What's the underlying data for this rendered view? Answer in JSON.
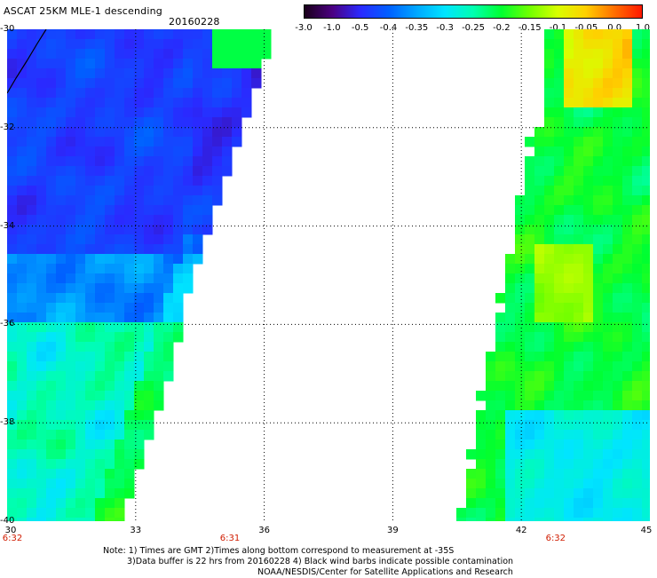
{
  "title": "ASCAT 25KM MLE-1 descending",
  "date": "20160228",
  "colorbar": {
    "labels": [
      "-3.0",
      "-1.0",
      "-0.5",
      "-0.4",
      "-0.35",
      "-0.3",
      "-0.25",
      "-0.2",
      "-0.15",
      "-0.1",
      "-0.05",
      "0.0",
      "1.0"
    ],
    "colors": [
      "#1a001a",
      "#4b0082",
      "#2a2aff",
      "#0060ff",
      "#00a8ff",
      "#00e5ff",
      "#00ffb0",
      "#00ff30",
      "#70ff00",
      "#d8ff00",
      "#ffd000",
      "#ff7000",
      "#ff1800"
    ]
  },
  "y_axis": {
    "labels": [
      "-30",
      "-32",
      "-34",
      "-36",
      "-38",
      "-40"
    ],
    "range": [
      -30,
      -40
    ]
  },
  "x_axis": {
    "labels": [
      "30",
      "33",
      "36",
      "39",
      "42",
      "45"
    ],
    "range": [
      30,
      45
    ]
  },
  "time_labels": [
    {
      "text": "6:32",
      "lon": 30
    },
    {
      "text": "6:31",
      "lon": 35.2
    },
    {
      "text": "6:32",
      "lon": 42.8
    }
  ],
  "notes": [
    "Note: 1) Times are GMT 2)Times along bottom correspond to measurement at -35S",
    "3)Data buffer is 22 hrs from 20160228 4) Black wind barbs indicate possible contamination",
    "NOAA/NESDIS/Center for Satellite Applications and Research"
  ]
}
